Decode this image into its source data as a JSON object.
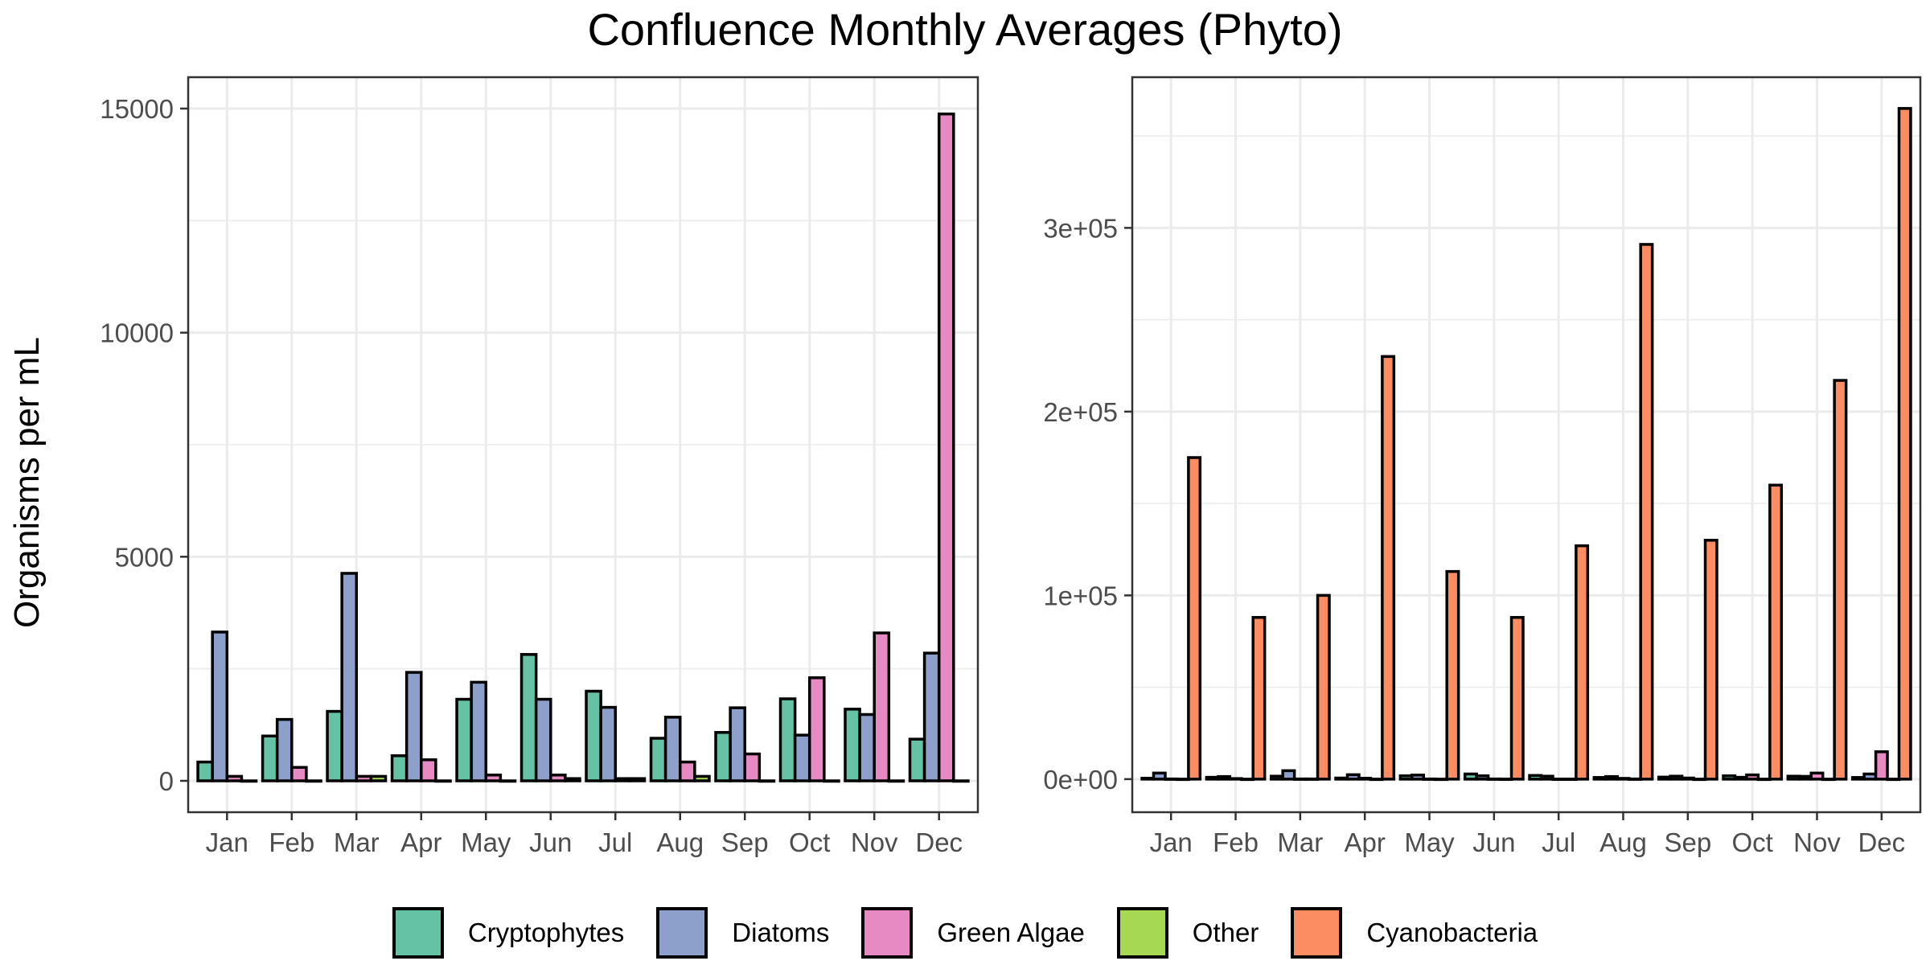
{
  "title": "Confluence Monthly Averages (Phyto)",
  "ylabel": "Organisms per mL",
  "legend": [
    {
      "name": "Cryptophytes",
      "color": "#66c2a5"
    },
    {
      "name": "Diatoms",
      "color": "#8da0cb"
    },
    {
      "name": "Green Algae",
      "color": "#e78ac3"
    },
    {
      "name": "Other",
      "color": "#a6d854"
    },
    {
      "name": "Cyanobacteria",
      "color": "#fc8d62"
    }
  ],
  "chart_data": [
    {
      "type": "bar",
      "categories": [
        "Jan",
        "Feb",
        "Mar",
        "Apr",
        "May",
        "Jun",
        "Jul",
        "Aug",
        "Sep",
        "Oct",
        "Nov",
        "Dec"
      ],
      "ylim": [
        -700,
        15700
      ],
      "yticks": [
        0,
        5000,
        10000,
        15000
      ],
      "ytick_labels": [
        "0",
        "5000",
        "10000",
        "15000"
      ],
      "grid": true,
      "series": [
        {
          "name": "Cryptophytes",
          "color": "#66c2a5",
          "values": [
            420,
            1000,
            1550,
            560,
            1820,
            2820,
            2000,
            950,
            1080,
            1830,
            1600,
            930
          ]
        },
        {
          "name": "Diatoms",
          "color": "#8da0cb",
          "values": [
            3320,
            1370,
            4630,
            2420,
            2200,
            1820,
            1640,
            1420,
            1630,
            1020,
            1480,
            2850
          ]
        },
        {
          "name": "Green Algae",
          "color": "#e78ac3",
          "values": [
            100,
            300,
            100,
            470,
            130,
            130,
            50,
            420,
            600,
            2300,
            3300,
            14880
          ]
        },
        {
          "name": "Other",
          "color": "#a6d854",
          "values": [
            0,
            0,
            100,
            0,
            0,
            50,
            50,
            100,
            0,
            0,
            0,
            0
          ]
        }
      ]
    },
    {
      "type": "bar",
      "categories": [
        "Jan",
        "Feb",
        "Mar",
        "Apr",
        "May",
        "Jun",
        "Jul",
        "Aug",
        "Sep",
        "Oct",
        "Nov",
        "Dec"
      ],
      "ylim": [
        -18000,
        382000
      ],
      "yticks": [
        0,
        100000,
        200000,
        300000
      ],
      "ytick_labels": [
        "0e+00",
        "1e+05",
        "2e+05",
        "3e+05"
      ],
      "grid": true,
      "series": [
        {
          "name": "Cryptophytes",
          "color": "#66c2a5",
          "values": [
            500,
            1000,
            1600,
            600,
            1800,
            2800,
            2000,
            900,
            1100,
            1800,
            1600,
            900
          ]
        },
        {
          "name": "Diatoms",
          "color": "#8da0cb",
          "values": [
            3300,
            1400,
            4600,
            2400,
            2200,
            1800,
            1600,
            1400,
            1600,
            1000,
            1500,
            2800
          ]
        },
        {
          "name": "Green Algae",
          "color": "#e78ac3",
          "values": [
            100,
            300,
            100,
            500,
            100,
            100,
            50,
            400,
            600,
            2300,
            3300,
            14900
          ]
        },
        {
          "name": "Other",
          "color": "#a6d854",
          "values": [
            0,
            0,
            100,
            0,
            0,
            50,
            50,
            100,
            0,
            0,
            0,
            0
          ]
        },
        {
          "name": "Cyanobacteria",
          "color": "#fc8d62",
          "values": [
            175000,
            88000,
            100000,
            230000,
            113000,
            88000,
            127000,
            291000,
            130000,
            160000,
            217000,
            365000
          ]
        }
      ]
    }
  ]
}
